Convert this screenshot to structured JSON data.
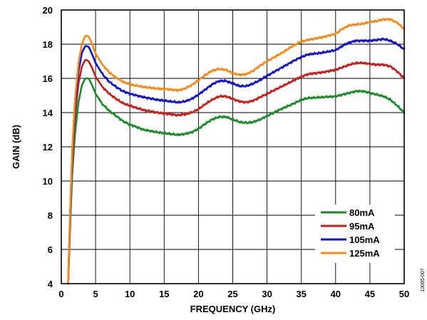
{
  "chart_data": {
    "type": "line",
    "title": "",
    "xlabel": "FREQUENCY (GHz)",
    "ylabel": "GAIN (dB)",
    "xlim": [
      0,
      50
    ],
    "ylim": [
      4,
      20
    ],
    "xticks": [
      0,
      5,
      10,
      15,
      20,
      25,
      30,
      35,
      40,
      45,
      50
    ],
    "yticks": [
      4,
      6,
      8,
      10,
      12,
      14,
      16,
      18,
      20
    ],
    "grid": true,
    "legend_position": "bottom-right",
    "figure_id": "13085-007",
    "series": [
      {
        "name": "80mA",
        "color": "#1a8a2a",
        "x": [
          1.0,
          1.3,
          1.6,
          2.0,
          2.5,
          3.0,
          3.5,
          4.0,
          4.5,
          5.0,
          6.0,
          7.0,
          8.0,
          9.0,
          10.0,
          12.0,
          14.0,
          16.0,
          17.0,
          18.0,
          19.0,
          20.0,
          21.0,
          22.0,
          23.0,
          24.0,
          25.0,
          26.0,
          27.0,
          28.0,
          29.0,
          30.0,
          32.0,
          34.0,
          35.0,
          36.0,
          38.0,
          40.0,
          41.0,
          42.0,
          43.0,
          44.0,
          45.0,
          46.0,
          47.0,
          48.0,
          49.0,
          50.0
        ],
        "values": [
          4.0,
          7.5,
          10.5,
          12.8,
          14.6,
          15.6,
          16.0,
          16.0,
          15.6,
          15.1,
          14.5,
          14.1,
          13.8,
          13.5,
          13.3,
          13.0,
          12.85,
          12.75,
          12.7,
          12.75,
          12.85,
          13.05,
          13.35,
          13.6,
          13.75,
          13.75,
          13.6,
          13.45,
          13.4,
          13.45,
          13.6,
          13.8,
          14.2,
          14.55,
          14.75,
          14.85,
          14.9,
          14.95,
          15.05,
          15.15,
          15.25,
          15.25,
          15.15,
          15.05,
          14.95,
          14.75,
          14.4,
          14.0
        ]
      },
      {
        "name": "95mA",
        "color": "#c41e1e",
        "x": [
          1.0,
          1.3,
          1.6,
          2.0,
          2.5,
          3.0,
          3.5,
          4.0,
          4.5,
          5.0,
          6.0,
          7.0,
          8.0,
          9.0,
          10.0,
          12.0,
          14.0,
          16.0,
          17.0,
          18.0,
          19.0,
          20.0,
          21.0,
          22.0,
          23.0,
          24.0,
          25.0,
          26.0,
          27.0,
          28.0,
          29.0,
          30.0,
          32.0,
          34.0,
          35.0,
          36.0,
          38.0,
          40.0,
          41.0,
          42.0,
          43.0,
          44.0,
          45.0,
          46.0,
          47.0,
          48.0,
          49.0,
          50.0
        ],
        "values": [
          4.0,
          8.0,
          11.2,
          13.8,
          15.7,
          16.7,
          17.1,
          17.0,
          16.6,
          16.1,
          15.5,
          15.1,
          14.8,
          14.55,
          14.4,
          14.15,
          14.0,
          13.9,
          13.85,
          13.9,
          14.0,
          14.2,
          14.5,
          14.75,
          14.95,
          14.95,
          14.8,
          14.65,
          14.6,
          14.7,
          14.9,
          15.1,
          15.5,
          15.9,
          16.1,
          16.25,
          16.35,
          16.5,
          16.65,
          16.8,
          16.9,
          16.9,
          16.85,
          16.8,
          16.8,
          16.7,
          16.4,
          16.0
        ]
      },
      {
        "name": "105mA",
        "color": "#1212c8",
        "x": [
          1.0,
          1.3,
          1.6,
          2.0,
          2.5,
          3.0,
          3.5,
          4.0,
          4.5,
          5.0,
          6.0,
          7.0,
          8.0,
          9.0,
          10.0,
          12.0,
          14.0,
          16.0,
          17.0,
          18.0,
          19.0,
          20.0,
          21.0,
          22.0,
          23.0,
          24.0,
          25.0,
          26.0,
          27.0,
          28.0,
          29.0,
          30.0,
          32.0,
          34.0,
          35.0,
          36.0,
          38.0,
          40.0,
          41.0,
          42.0,
          43.0,
          44.0,
          45.0,
          46.0,
          47.0,
          48.0,
          49.0,
          50.0
        ],
        "values": [
          4.0,
          8.3,
          11.6,
          14.4,
          16.4,
          17.5,
          17.9,
          17.85,
          17.4,
          16.9,
          16.25,
          15.8,
          15.5,
          15.25,
          15.1,
          14.9,
          14.75,
          14.65,
          14.6,
          14.65,
          14.8,
          15.05,
          15.35,
          15.65,
          15.85,
          15.85,
          15.7,
          15.55,
          15.55,
          15.7,
          15.9,
          16.15,
          16.6,
          17.05,
          17.25,
          17.4,
          17.5,
          17.65,
          17.9,
          18.1,
          18.2,
          18.2,
          18.2,
          18.25,
          18.3,
          18.2,
          18.0,
          17.7
        ]
      },
      {
        "name": "125mA",
        "color": "#f28a1e",
        "x": [
          1.0,
          1.3,
          1.6,
          2.0,
          2.5,
          3.0,
          3.5,
          4.0,
          4.5,
          5.0,
          6.0,
          7.0,
          8.0,
          9.0,
          10.0,
          12.0,
          14.0,
          16.0,
          17.0,
          18.0,
          19.0,
          20.0,
          21.0,
          22.0,
          23.0,
          24.0,
          25.0,
          26.0,
          27.0,
          28.0,
          29.0,
          30.0,
          32.0,
          34.0,
          35.0,
          36.0,
          38.0,
          40.0,
          41.0,
          42.0,
          43.0,
          44.0,
          45.0,
          46.0,
          47.0,
          48.0,
          49.0,
          50.0
        ],
        "values": [
          4.0,
          8.5,
          11.9,
          14.8,
          16.9,
          18.0,
          18.5,
          18.45,
          18.0,
          17.45,
          16.8,
          16.35,
          16.05,
          15.8,
          15.65,
          15.5,
          15.4,
          15.35,
          15.3,
          15.4,
          15.6,
          15.9,
          16.2,
          16.45,
          16.55,
          16.5,
          16.3,
          16.2,
          16.25,
          16.45,
          16.75,
          17.0,
          17.45,
          17.95,
          18.15,
          18.25,
          18.4,
          18.6,
          18.9,
          19.1,
          19.15,
          19.2,
          19.3,
          19.35,
          19.45,
          19.45,
          19.25,
          18.9
        ]
      }
    ]
  }
}
